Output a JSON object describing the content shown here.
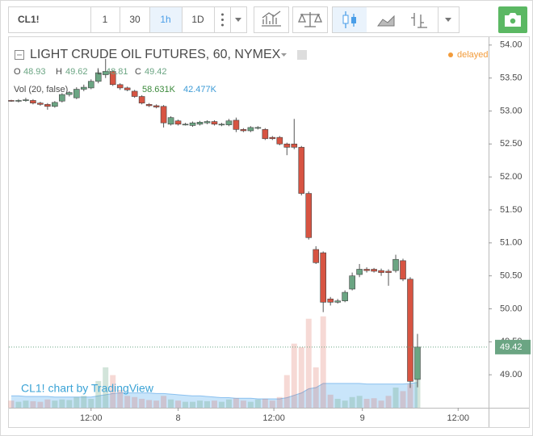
{
  "toolbar": {
    "symbol": "CL1!",
    "intervals": [
      "1",
      "30",
      "1h",
      "1D"
    ],
    "active": "1h"
  },
  "chart_data": {
    "type": "candlestick",
    "title": "LIGHT CRUDE OIL FUTURES, 60, NYMEX",
    "status": "delayed",
    "ohlc_labels": [
      "O",
      "H",
      "L",
      "C"
    ],
    "volume_title": "Vol (20, false)",
    "volume_labels": {
      "volume": "58.631K",
      "ma": "42.477K"
    },
    "watermark": "CL1! chart by TradingView",
    "categories": [
      null,
      null,
      null,
      null,
      null,
      null,
      null,
      null,
      null,
      null,
      null,
      null,
      null,
      null,
      null,
      null,
      null,
      null,
      null,
      null,
      null,
      null,
      null,
      null,
      null,
      null,
      null,
      null,
      null,
      null,
      null,
      null,
      null,
      null,
      null,
      null,
      null,
      null,
      null,
      null,
      null,
      null,
      null,
      null,
      null,
      null,
      null,
      null,
      null,
      null,
      null,
      null,
      null,
      null,
      null,
      null,
      null
    ],
    "open": [
      53.16,
      53.15,
      53.16,
      53.16,
      53.12,
      53.1,
      53.07,
      53.15,
      53.25,
      53.2,
      53.33,
      53.35,
      53.45,
      53.55,
      53.6,
      53.4,
      53.35,
      53.3,
      53.22,
      53.1,
      53.08,
      53.07,
      52.8,
      52.85,
      52.8,
      52.78,
      52.8,
      52.82,
      52.84,
      52.79,
      52.79,
      52.86,
      52.72,
      52.7,
      52.74,
      52.72,
      52.6,
      52.6,
      52.5,
      52.5,
      52.45,
      51.75,
      50.9,
      50.85,
      50.15,
      50.1,
      50.12,
      50.3,
      50.52,
      50.6,
      50.6,
      50.58,
      50.57,
      50.58,
      50.73,
      50.45,
      48.93
    ],
    "high": [
      53.17,
      53.18,
      53.2,
      53.18,
      53.14,
      53.12,
      53.15,
      53.27,
      53.3,
      53.36,
      53.4,
      53.48,
      53.62,
      53.79,
      53.62,
      53.42,
      53.37,
      53.32,
      53.24,
      53.12,
      53.1,
      53.09,
      52.92,
      52.87,
      52.82,
      52.84,
      52.85,
      52.86,
      52.86,
      52.82,
      52.88,
      52.9,
      52.74,
      52.77,
      52.77,
      52.74,
      52.62,
      52.62,
      52.52,
      52.88,
      52.47,
      51.78,
      50.95,
      50.87,
      50.18,
      50.15,
      50.28,
      50.55,
      50.68,
      50.63,
      50.62,
      50.61,
      50.6,
      50.82,
      50.76,
      50.48,
      49.62
    ],
    "low": [
      53.14,
      53.13,
      53.14,
      53.1,
      53.08,
      53.02,
      53.05,
      53.13,
      53.22,
      53.18,
      53.3,
      53.33,
      53.42,
      53.5,
      53.38,
      53.32,
      53.3,
      53.2,
      53.1,
      53.06,
      53.04,
      52.75,
      52.78,
      52.78,
      52.78,
      52.76,
      52.78,
      52.8,
      52.78,
      52.77,
      52.77,
      52.68,
      52.68,
      52.68,
      52.72,
      52.56,
      52.56,
      52.48,
      52.33,
      52.42,
      51.72,
      51.05,
      50.68,
      49.95,
      50.05,
      50.08,
      50.1,
      50.28,
      50.48,
      50.55,
      50.55,
      50.5,
      50.35,
      50.55,
      50.42,
      48.8,
      48.81
    ],
    "close": [
      53.15,
      53.16,
      53.17,
      53.12,
      53.1,
      53.07,
      53.13,
      53.25,
      53.28,
      53.33,
      53.36,
      53.45,
      53.58,
      53.6,
      53.4,
      53.35,
      53.32,
      53.22,
      53.12,
      53.08,
      53.06,
      52.82,
      52.9,
      52.8,
      52.8,
      52.82,
      52.83,
      52.84,
      52.8,
      52.8,
      52.85,
      52.72,
      52.7,
      52.75,
      52.75,
      52.58,
      52.58,
      52.5,
      52.45,
      52.45,
      51.75,
      51.08,
      50.7,
      50.1,
      50.1,
      50.12,
      50.25,
      50.5,
      50.6,
      50.58,
      50.57,
      50.55,
      50.55,
      50.75,
      50.45,
      48.9,
      49.42
    ],
    "volume": [
      12,
      10,
      12,
      11,
      10,
      14,
      12,
      14,
      13,
      18,
      20,
      15,
      45,
      68,
      55,
      30,
      20,
      18,
      15,
      13,
      12,
      20,
      14,
      12,
      10,
      10,
      12,
      11,
      12,
      10,
      14,
      16,
      12,
      10,
      14,
      15,
      12,
      18,
      55,
      108,
      102,
      150,
      68,
      154,
      22,
      15,
      12,
      18,
      20,
      15,
      16,
      12,
      20,
      34,
      28,
      40,
      58.631
    ],
    "volume_ma": [
      20,
      20,
      19,
      19,
      19,
      19,
      18,
      18,
      18,
      18,
      18,
      18,
      20,
      22,
      24,
      25,
      25,
      25,
      25,
      25,
      24,
      24,
      23,
      22,
      21,
      20,
      20,
      19,
      18,
      17,
      17,
      16,
      16,
      16,
      15,
      15,
      15,
      15,
      17,
      21,
      25,
      32,
      34,
      41,
      41,
      41,
      41,
      41,
      41,
      40,
      40,
      40,
      40,
      40,
      40,
      41,
      42.477
    ],
    "up_color": "#6ba583",
    "down_color": "#d75442",
    "xlim": [
      -0.33,
      65.8
    ],
    "xticks": [
      {
        "value": 11,
        "label": "12:00"
      },
      {
        "value": 23,
        "label": "8"
      },
      {
        "value": 36.2,
        "label": "12:00"
      },
      {
        "value": 48.4,
        "label": "9"
      },
      {
        "value": 61.6,
        "label": "12:00"
      }
    ],
    "ylim": [
      48.5,
      54.12
    ],
    "yticks": [
      {
        "value": 49,
        "label": "49.00"
      },
      {
        "value": 49.5,
        "label": "49.50"
      },
      {
        "value": 50,
        "label": "50.00"
      },
      {
        "value": 50.5,
        "label": "50.50"
      },
      {
        "value": 51,
        "label": "51.00"
      },
      {
        "value": 51.5,
        "label": "51.50"
      },
      {
        "value": 52,
        "label": "52.00"
      },
      {
        "value": 52.5,
        "label": "52.50"
      },
      {
        "value": 53,
        "label": "53.00"
      },
      {
        "value": 53.5,
        "label": "53.50"
      },
      {
        "value": 54,
        "label": "54.00"
      }
    ]
  }
}
